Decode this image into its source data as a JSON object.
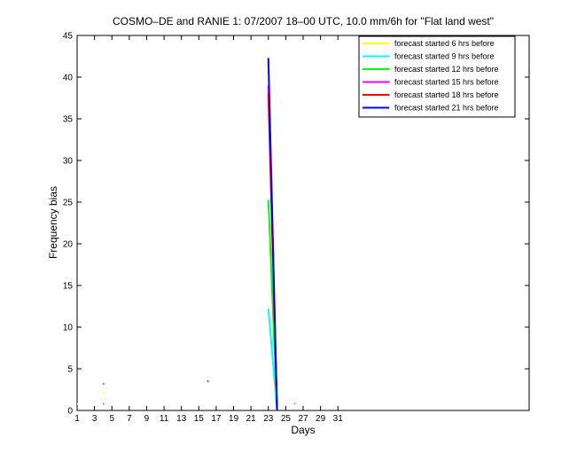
{
  "chart_data": {
    "type": "line",
    "title": "COSMO–DE and RANIE 1: 07/2007 18–00 UTC, 10.0 mm/6h for \"Flat land west\"",
    "x_label": "Days",
    "y_label": "Frequency bias",
    "x": [
      1,
      2,
      4,
      5,
      16,
      17,
      22,
      23,
      24,
      25,
      26,
      27
    ],
    "series": [
      {
        "name": "forecast started 6 hrs before",
        "color": "#ffff00",
        "values": [
          0.8,
          null,
          2.0,
          null,
          null,
          null,
          null,
          null,
          null,
          null,
          null,
          null
        ]
      },
      {
        "name": "forecast started 9 hrs before",
        "color": "#00ffff",
        "values": [
          null,
          null,
          null,
          null,
          null,
          null,
          null,
          12.2,
          0,
          null,
          null,
          null
        ]
      },
      {
        "name": "forecast started 12 hrs before",
        "color": "#00ff00",
        "values": [
          null,
          null,
          null,
          null,
          null,
          null,
          null,
          25.3,
          0,
          null,
          0.8,
          null
        ]
      },
      {
        "name": "forecast started 15 hrs before",
        "color": "#ff00ff",
        "values": [
          null,
          null,
          null,
          null,
          null,
          null,
          null,
          39.0,
          0,
          null,
          null,
          null
        ]
      },
      {
        "name": "forecast started 18 hrs before",
        "color": "#ff0000",
        "values": [
          null,
          null,
          0.8,
          null,
          null,
          null,
          null,
          38.0,
          0,
          null,
          null,
          null
        ]
      },
      {
        "name": "forecast started 21 hrs before",
        "color": "#0000ff",
        "values": [
          null,
          null,
          3.2,
          null,
          3.5,
          null,
          null,
          42.3,
          0,
          null,
          null,
          null
        ]
      }
    ],
    "xlim": [
      1,
      53
    ],
    "xticks": [
      1,
      3,
      5,
      7,
      9,
      11,
      13,
      15,
      17,
      19,
      21,
      23,
      25,
      27,
      29,
      31
    ],
    "ylim": [
      0,
      45
    ],
    "yticks": [
      0,
      5,
      10,
      15,
      20,
      25,
      30,
      35,
      40,
      45
    ],
    "legend": "top-right",
    "grid": false
  }
}
